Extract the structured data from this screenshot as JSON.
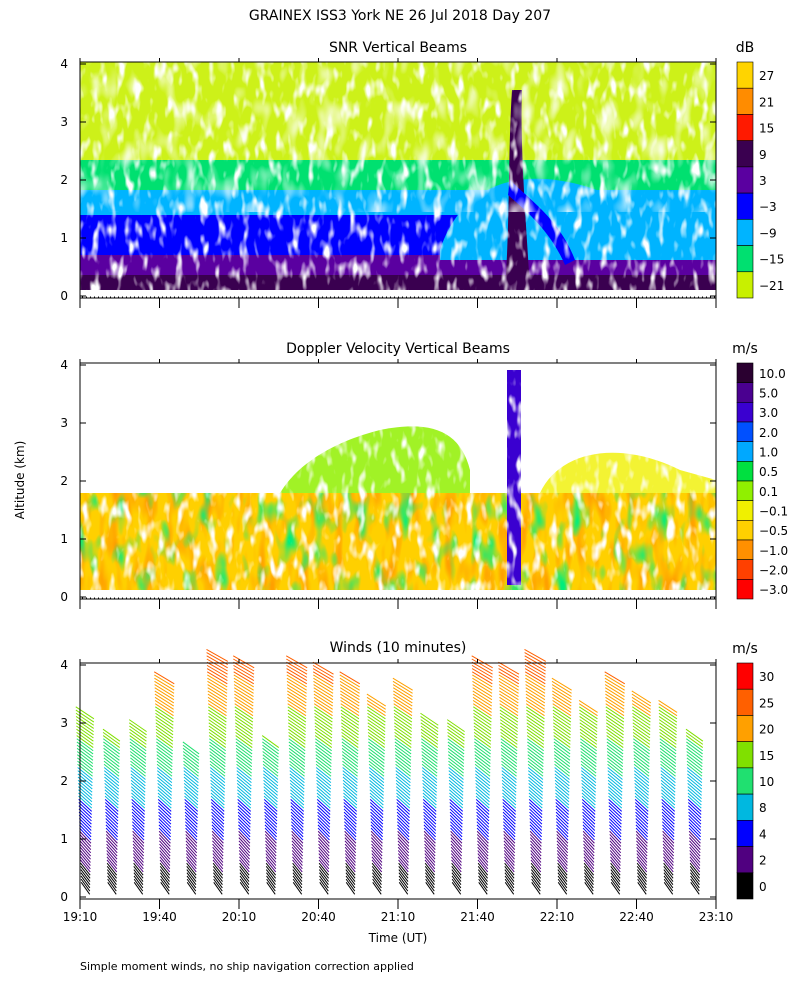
{
  "main_title": "GRAINEX ISS3 York NE  26 Jul 2018 Day 207",
  "y_axis_label": "Altitude (km)",
  "x_axis_label": "Time (UT)",
  "footnote": "Simple moment winds, no ship navigation correction applied",
  "x_ticks": [
    "19:10",
    "19:40",
    "20:10",
    "20:40",
    "21:10",
    "21:40",
    "22:10",
    "22:40",
    "23:10"
  ],
  "y_ticks": [
    "0",
    "1",
    "2",
    "3",
    "4"
  ],
  "chart_data": [
    {
      "type": "heatmap",
      "title": "SNR Vertical Beams",
      "xlabel": "",
      "ylabel": "Altitude (km)",
      "xlim": [
        "19:10",
        "23:10"
      ],
      "ylim": [
        0,
        4
      ],
      "colorbar": {
        "unit": "dB",
        "ticks": [
          "27",
          "21",
          "15",
          "9",
          "3",
          "−3",
          "−9",
          "−15",
          "−21"
        ],
        "colors": [
          "#ffd400",
          "#ff8c00",
          "#ff1a00",
          "#3a0050",
          "#5a00a0",
          "#0000ff",
          "#00b4ff",
          "#00e070",
          "#c8f000"
        ]
      },
      "features": [
        {
          "time": "21:40",
          "altitude_km": 3.7,
          "note": "dark vertical plume"
        },
        {
          "layer_top_km": 1.7,
          "note": "strong echo below"
        }
      ]
    },
    {
      "type": "heatmap",
      "title": "Doppler Velocity Vertical Beams",
      "xlabel": "",
      "ylabel": "Altitude (km)",
      "xlim": [
        "19:10",
        "23:10"
      ],
      "ylim": [
        0,
        4
      ],
      "colorbar": {
        "unit": "m/s",
        "ticks": [
          "10.0",
          "5.0",
          "3.0",
          "2.0",
          "1.0",
          "0.5",
          "0.1",
          "−0.1",
          "−0.5",
          "−1.0",
          "−2.0",
          "−3.0"
        ],
        "colors": [
          "#2a0030",
          "#4a0090",
          "#3a00d0",
          "#0050ff",
          "#00a8ff",
          "#00e040",
          "#90f000",
          "#f0f000",
          "#ffd000",
          "#ff9000",
          "#ff4000",
          "#ff0000"
        ]
      }
    },
    {
      "type": "scatter",
      "title": "Winds (10 minutes)",
      "xlabel": "Time (UT)",
      "ylabel": "Altitude (km)",
      "xlim": [
        "19:10",
        "23:10"
      ],
      "ylim": [
        0,
        4
      ],
      "colorbar": {
        "unit": "m/s",
        "ticks": [
          "30",
          "25",
          "20",
          "15",
          "10",
          "8",
          "4",
          "2",
          "0"
        ],
        "colors": [
          "#ff0000",
          "#ff6000",
          "#ffa000",
          "#80e000",
          "#20e070",
          "#00b8e0",
          "#0000ff",
          "#500080",
          "#000000"
        ]
      },
      "profile_times": [
        "19:10",
        "19:20",
        "19:30",
        "19:40",
        "19:50",
        "20:00",
        "20:10",
        "20:20",
        "20:30",
        "20:40",
        "20:50",
        "21:00",
        "21:10",
        "21:20",
        "21:30",
        "21:40",
        "21:50",
        "22:00",
        "22:10",
        "22:20",
        "22:30",
        "22:40",
        "22:50",
        "23:00"
      ],
      "profile_tops_km": [
        3.2,
        2.8,
        3.0,
        3.8,
        2.6,
        4.2,
        4.1,
        2.7,
        4.1,
        4.0,
        3.8,
        3.4,
        3.7,
        3.1,
        3.0,
        4.1,
        4.0,
        4.2,
        3.7,
        3.3,
        3.8,
        3.5,
        3.3,
        2.8
      ]
    }
  ]
}
